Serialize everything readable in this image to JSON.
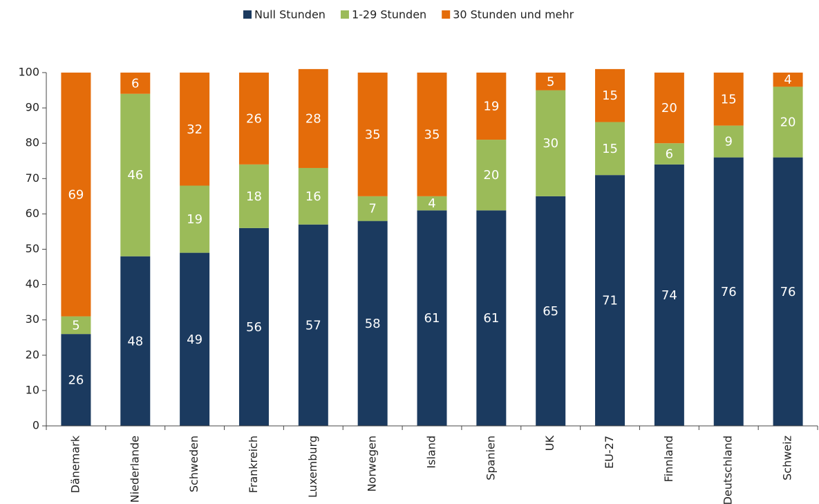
{
  "chart_data": {
    "type": "stacked_bar",
    "categories": [
      "Dänemark",
      "Niederlande",
      "Schweden",
      "Frankreich",
      "Luxemburg",
      "Norwegen",
      "Island",
      "Spanien",
      "UK",
      "EU-27",
      "Finnland",
      "Deutschland",
      "Schweiz"
    ],
    "series": [
      {
        "name": "Null Stunden",
        "color": "#1b3a5f",
        "values": [
          26,
          48,
          49,
          56,
          57,
          58,
          61,
          61,
          65,
          71,
          74,
          76,
          76
        ]
      },
      {
        "name": "1-29 Stunden",
        "color": "#9bbb59",
        "values": [
          5,
          46,
          19,
          18,
          16,
          7,
          4,
          20,
          30,
          15,
          6,
          9,
          20
        ]
      },
      {
        "name": "30 Stunden und mehr",
        "color": "#e46c0a",
        "values": [
          69,
          6,
          32,
          26,
          28,
          35,
          35,
          19,
          5,
          15,
          20,
          15,
          4
        ]
      }
    ],
    "ylim": [
      0,
      100
    ],
    "yticks": [
      0,
      10,
      20,
      30,
      40,
      50,
      60,
      70,
      80,
      90,
      100
    ],
    "legend": "top"
  }
}
